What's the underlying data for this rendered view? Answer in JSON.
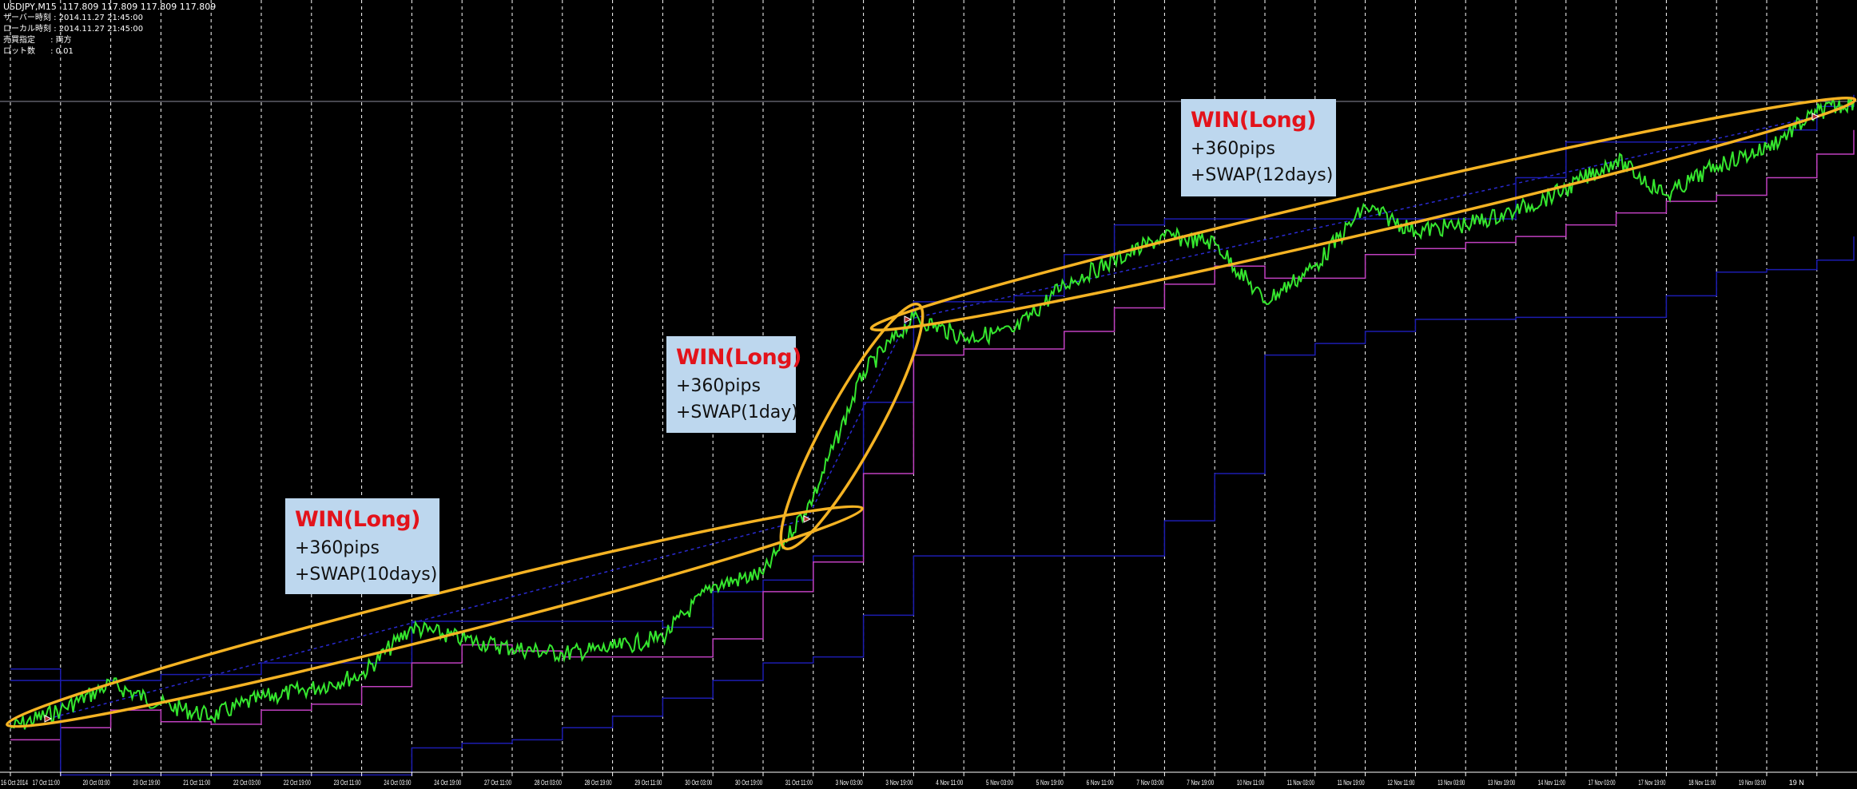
{
  "header": {
    "symbol_line": "USDJPY,M15  117.809 117.809 117.809 117.809",
    "rows": [
      {
        "label": "サーバー時刻",
        "value": ": 2014.11.27 21:45:00"
      },
      {
        "label": "ローカル時刻",
        "value": ": 2014.11.27 21:45:00"
      },
      {
        "label": "売買指定",
        "value": ": 両方"
      },
      {
        "label": "ロット数",
        "value": ": 0.01"
      }
    ]
  },
  "annotations": [
    {
      "title": "WIN(Long)",
      "line1": "+360pips",
      "line2": "+SWAP(10days)"
    },
    {
      "title": "WIN(Long)",
      "line1": "+360pips",
      "line2": "+SWAP(1day)"
    },
    {
      "title": "WIN(Long)",
      "line1": "+360pips",
      "line2": "+SWAP(12days)"
    }
  ],
  "colors": {
    "background": "#000000",
    "price": "#35e62e",
    "blue_line": "#1c1cb0",
    "magenta_line": "#c040c0",
    "ellipse": "#f5b323",
    "grid": "#ffffff",
    "current_price_line": "#8c8c9c",
    "note_bg": "#bdd7ee",
    "note_title": "#e3131b"
  },
  "chart_data": {
    "type": "line",
    "symbol": "USDJPY",
    "timeframe": "M15",
    "current_price": 117.809,
    "grid": true,
    "x_tick_labels": [
      "16 Oct 2014",
      "17 Oct 11:00",
      "20 Oct 03:00",
      "20 Oct 19:00",
      "21 Oct 11:00",
      "22 Oct 03:00",
      "22 Oct 19:00",
      "23 Oct 11:00",
      "24 Oct 03:00",
      "24 Oct 19:00",
      "27 Oct 11:00",
      "28 Oct 03:00",
      "28 Oct 19:00",
      "29 Oct 11:00",
      "30 Oct 03:00",
      "30 Oct 19:00",
      "31 Oct 11:00",
      "3 Nov 03:00",
      "3 Nov 19:00",
      "4 Nov 11:00",
      "5 Nov 03:00",
      "5 Nov 19:00",
      "6 Nov 11:00",
      "7 Nov 03:00",
      "7 Nov 19:00",
      "10 Nov 11:00",
      "11 Nov 03:00",
      "11 Nov 19:00",
      "12 Nov 11:00",
      "13 Nov 03:00",
      "13 Nov 19:00",
      "14 Nov 11:00",
      "17 Nov 03:00",
      "17 Nov 19:00",
      "18 Nov 11:00",
      "19 Nov 03:00",
      "19 N"
    ],
    "series": [
      {
        "key": "price",
        "values": [
          105.34,
          105.69,
          106.21,
          105.81,
          105.57,
          105.93,
          106.12,
          106.4,
          107.34,
          107.11,
          106.92,
          106.82,
          106.92,
          107.15,
          108.17,
          108.4,
          109.93,
          112.41,
          113.51,
          113.11,
          113.23,
          114.17,
          114.64,
          115.12,
          115.0,
          113.82,
          114.53,
          115.71,
          115.23,
          115.35,
          115.63,
          116.06,
          116.65,
          115.94,
          116.53,
          116.88,
          117.59,
          117.81
        ]
      },
      {
        "key": "blue_upper",
        "values": [
          106.28,
          106.28,
          106.28,
          106.4,
          106.4,
          106.63,
          106.63,
          106.63,
          107.46,
          107.46,
          107.46,
          107.46,
          107.46,
          107.34,
          108.05,
          108.28,
          108.76,
          111.82,
          113.82,
          113.82,
          113.94,
          114.76,
          115.35,
          115.47,
          115.47,
          115.47,
          115.47,
          115.47,
          115.47,
          115.47,
          116.29,
          117.0,
          117.0,
          117.0,
          117.0,
          117.24,
          117.71,
          117.94
        ]
      },
      {
        "key": "magenta",
        "values": [
          105.1,
          105.34,
          105.69,
          105.46,
          105.41,
          105.69,
          105.81,
          106.16,
          106.63,
          106.99,
          106.87,
          106.75,
          106.75,
          106.75,
          107.11,
          108.05,
          108.64,
          110.4,
          112.76,
          112.88,
          112.88,
          113.23,
          113.7,
          114.17,
          114.53,
          114.29,
          114.29,
          114.76,
          114.88,
          115.0,
          115.12,
          115.35,
          115.59,
          115.82,
          115.94,
          116.29,
          116.76,
          117.24
        ]
      },
      {
        "key": "blue_slow",
        "values": [
          106.51,
          104.4,
          104.4,
          104.4,
          104.4,
          104.4,
          104.4,
          104.4,
          104.94,
          105.03,
          105.1,
          105.34,
          105.57,
          105.93,
          106.28,
          106.63,
          106.75,
          107.58,
          108.76,
          108.76,
          108.76,
          108.76,
          108.76,
          109.46,
          110.4,
          112.76,
          112.99,
          113.23,
          113.47,
          113.47,
          113.51,
          113.51,
          113.51,
          113.94,
          114.41,
          114.46,
          114.65,
          115.12
        ]
      }
    ]
  }
}
